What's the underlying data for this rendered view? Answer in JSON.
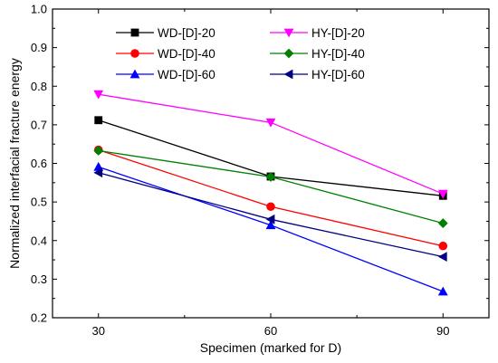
{
  "chart_data": {
    "type": "line",
    "xlabel": "Specimen (marked for D)",
    "ylabel": "Normalized interfacial fracture energy",
    "x": [
      30,
      60,
      90
    ],
    "xticks": [
      "30",
      "60",
      "90"
    ],
    "xlim": [
      22,
      98
    ],
    "ylim": [
      0.2,
      1.0
    ],
    "yticks": [
      "0.2",
      "0.3",
      "0.4",
      "0.5",
      "0.6",
      "0.7",
      "0.8",
      "0.9",
      "1.0"
    ],
    "legend": {
      "position": "top",
      "columns": 2
    },
    "grid": false,
    "series": [
      {
        "name": "WD-[D]-20",
        "values": [
          0.712,
          0.566,
          0.516
        ],
        "color": "#000000",
        "marker": "square"
      },
      {
        "name": "HY-[D]-20",
        "values": [
          0.779,
          0.706,
          0.521
        ],
        "color": "#ff00ff",
        "marker": "triangle-down"
      },
      {
        "name": "WD-[D]-40",
        "values": [
          0.635,
          0.488,
          0.386
        ],
        "color": "#ff0000",
        "marker": "circle"
      },
      {
        "name": "HY-[D]-40",
        "values": [
          0.633,
          0.565,
          0.445
        ],
        "color": "#008000",
        "marker": "diamond"
      },
      {
        "name": "WD-[D]-60",
        "values": [
          0.591,
          0.44,
          0.268
        ],
        "color": "#0000ff",
        "marker": "triangle-up"
      },
      {
        "name": "HY-[D]-60",
        "values": [
          0.576,
          0.455,
          0.358
        ],
        "color": "#000080",
        "marker": "triangle-left"
      }
    ]
  }
}
